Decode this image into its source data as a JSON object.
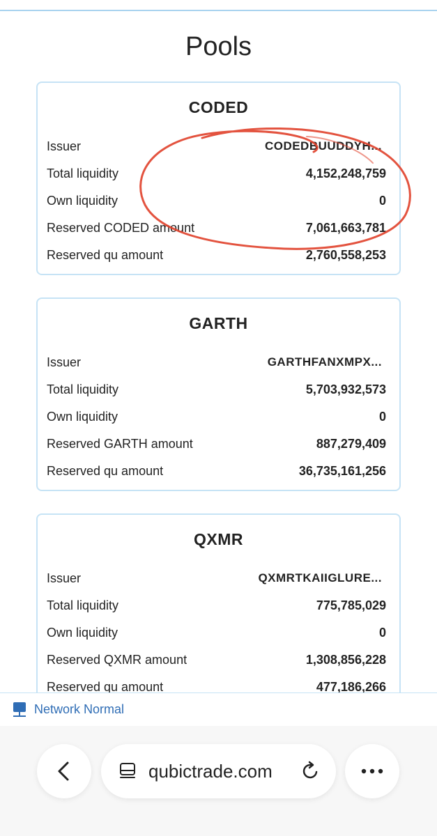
{
  "page": {
    "title": "Pools"
  },
  "pools": [
    {
      "name": "CODED",
      "rows": [
        {
          "label": "Issuer",
          "value": "CODEDBUUDDYH..."
        },
        {
          "label": "Total liquidity",
          "value": "4,152,248,759"
        },
        {
          "label": "Own liquidity",
          "value": "0"
        },
        {
          "label": "Reserved CODED amount",
          "value": "7,061,663,781"
        },
        {
          "label": "Reserved qu amount",
          "value": "2,760,558,253"
        }
      ]
    },
    {
      "name": "GARTH",
      "rows": [
        {
          "label": "Issuer",
          "value": "GARTHFANXMPX..."
        },
        {
          "label": "Total liquidity",
          "value": "5,703,932,573"
        },
        {
          "label": "Own liquidity",
          "value": "0"
        },
        {
          "label": "Reserved GARTH amount",
          "value": "887,279,409"
        },
        {
          "label": "Reserved qu amount",
          "value": "36,735,161,256"
        }
      ]
    },
    {
      "name": "QXMR",
      "rows": [
        {
          "label": "Issuer",
          "value": "QXMRTKAIIGLURE..."
        },
        {
          "label": "Total liquidity",
          "value": "775,785,029"
        },
        {
          "label": "Own liquidity",
          "value": "0"
        },
        {
          "label": "Reserved QXMR amount",
          "value": "1,308,856,228"
        },
        {
          "label": "Reserved qu amount",
          "value": "477,186,266"
        }
      ]
    }
  ],
  "status": {
    "network_label": "Network Normal",
    "network_icon": "network-icon",
    "color": "#2f6db5"
  },
  "browser": {
    "url": "qubictrade.com",
    "back_icon": "chevron-left-icon",
    "tabs_icon": "page-settings-icon",
    "reload_icon": "reload-icon",
    "more_icon": "more-icon"
  },
  "colors": {
    "card_border": "#c6e3f5",
    "annotation": "#e0402a"
  }
}
